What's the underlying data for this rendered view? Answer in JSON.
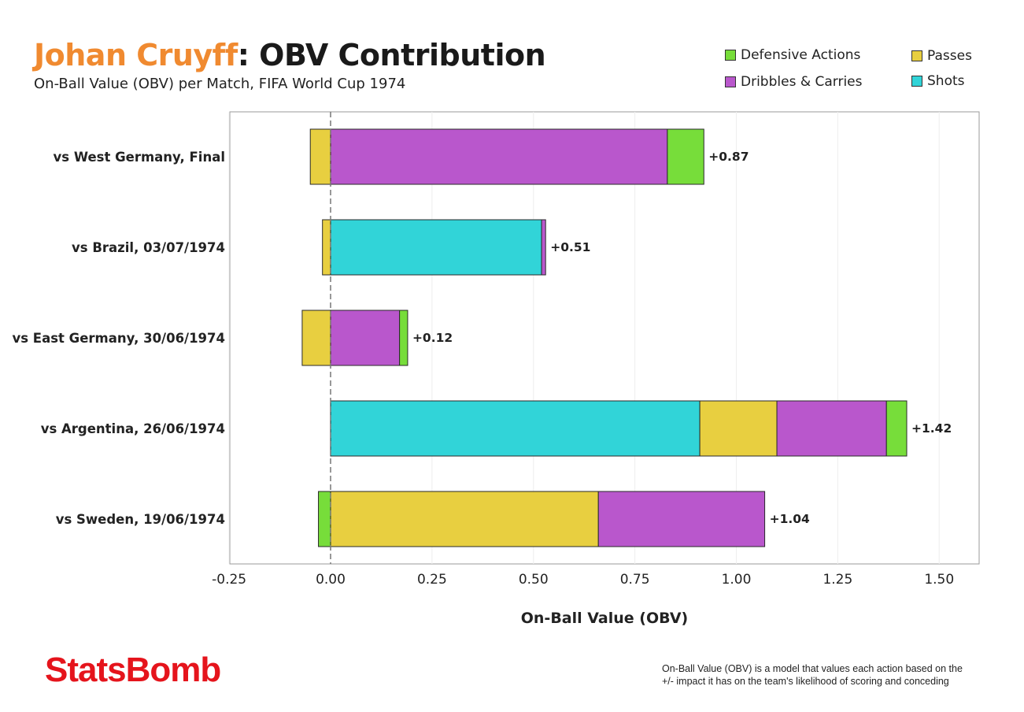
{
  "header": {
    "title_name": "Johan Cruyff",
    "title_rest": ": OBV Contribution",
    "subtitle": "On-Ball Value (OBV) per Match, FIFA World Cup 1974"
  },
  "colors": {
    "title_name": "#f08a30",
    "Defensive Actions": "#77dd3a",
    "Passes": "#e8cf40",
    "Dribbles & Carries": "#b957cc",
    "Shots": "#31d4d8"
  },
  "legend": {
    "items": [
      "Defensive Actions",
      "Passes",
      "Dribbles & Carries",
      "Shots"
    ]
  },
  "chart_data": {
    "type": "bar",
    "orientation": "horizontal",
    "stacked": true,
    "xlabel": "On-Ball Value (OBV)",
    "xlim": [
      -0.25,
      1.6
    ],
    "xticks": [
      -0.25,
      0.0,
      0.25,
      0.5,
      0.75,
      1.0,
      1.25,
      1.5
    ],
    "xtick_labels": [
      "-0.25",
      "0.00",
      "0.25",
      "0.50",
      "0.75",
      "1.00",
      "1.25",
      "1.50"
    ],
    "grid": "vertical",
    "legend_position": "top-right",
    "categories": [
      "vs West Germany, Final",
      "vs Brazil, 03/07/1974",
      "vs East Germany, 30/06/1974",
      "vs Argentina, 26/06/1974",
      "vs Sweden, 19/06/1974"
    ],
    "series": [
      {
        "name": "Defensive Actions",
        "values": [
          0.09,
          0.0,
          0.02,
          0.05,
          -0.03
        ]
      },
      {
        "name": "Passes",
        "values": [
          -0.05,
          -0.02,
          -0.07,
          0.19,
          0.66
        ]
      },
      {
        "name": "Dribbles & Carries",
        "values": [
          0.83,
          0.01,
          0.17,
          0.27,
          0.41
        ]
      },
      {
        "name": "Shots",
        "values": [
          0.0,
          0.52,
          0.0,
          0.91,
          0.0
        ]
      }
    ],
    "stack_order": [
      [
        "Passes",
        "Dribbles & Carries",
        "Defensive Actions"
      ],
      [
        "Passes",
        "Shots",
        "Dribbles & Carries"
      ],
      [
        "Passes",
        "Dribbles & Carries",
        "Defensive Actions"
      ],
      [
        "Shots",
        "Passes",
        "Dribbles & Carries",
        "Defensive Actions"
      ],
      [
        "Defensive Actions",
        "Passes",
        "Dribbles & Carries"
      ]
    ],
    "totals": [
      0.87,
      0.51,
      0.12,
      1.42,
      1.04
    ],
    "total_labels": [
      "+0.87",
      "+0.51",
      "+0.12",
      "+1.42",
      "+1.04"
    ]
  },
  "footer": {
    "brand": "StatsBomb",
    "note_line1": "On-Ball Value (OBV) is a model that values each action based on the",
    "note_line2": "+/- impact it has on the team's likelihood of scoring and conceding"
  }
}
